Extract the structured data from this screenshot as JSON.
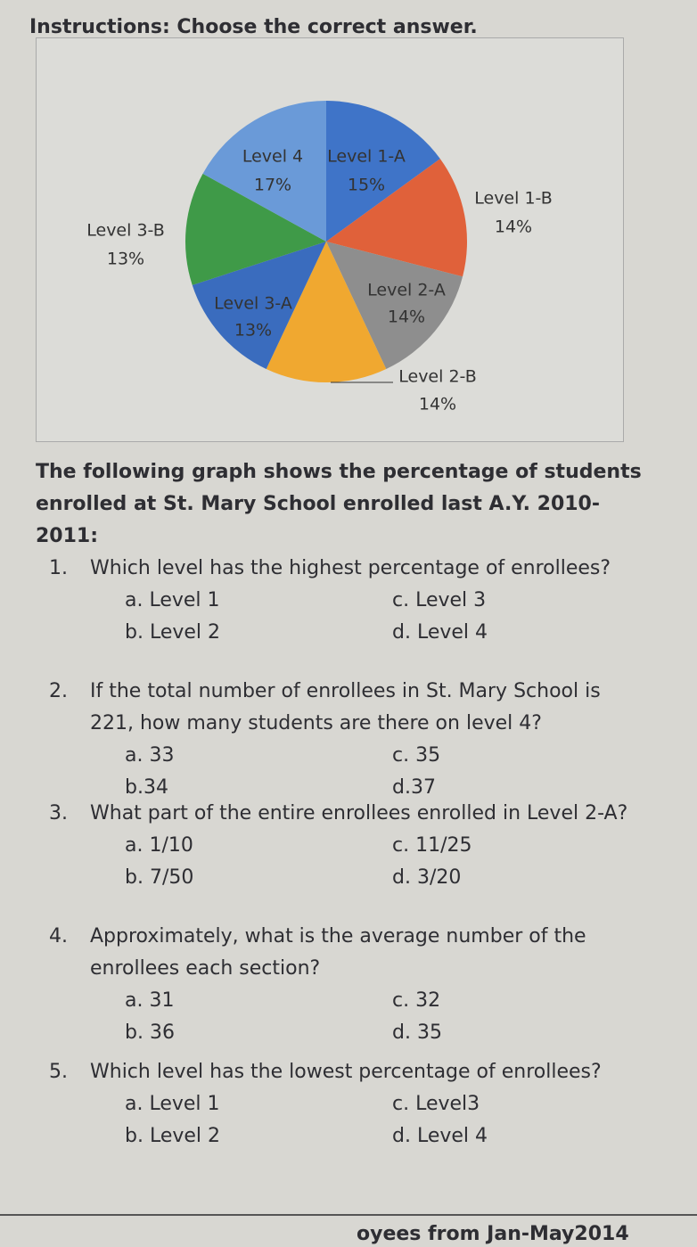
{
  "instructions": "Instructions: Choose the correct answer.",
  "chart_data": {
    "type": "pie",
    "categories": [
      "Level 1-A",
      "Level 1-B",
      "Level 2-A",
      "Level 2-B",
      "Level 3-A",
      "Level 3-B",
      "Level 4"
    ],
    "values": [
      15,
      14,
      14,
      14,
      13,
      13,
      17
    ],
    "value_labels": [
      "15%",
      "14%",
      "14%",
      "14%",
      "13%",
      "13%",
      "17%"
    ],
    "colors": [
      "#3f74c8",
      "#e0613a",
      "#8e8e8e",
      "#f0a830",
      "#3a6cbe",
      "#3f9a48",
      "#6a9ad8"
    ]
  },
  "description": "The following graph shows the percentage of students enrolled at St. Mary School enrolled last A.Y. 2010-2011:",
  "questions": [
    {
      "number": "1.",
      "text": "Which level has the highest percentage of enrollees?",
      "options": [
        "a. Level 1",
        "c. Level 3",
        "b. Level 2",
        "d. Level 4"
      ]
    },
    {
      "number": "2.",
      "text": "If the total number of enrollees in St. Mary School is 221, how many students are there on level 4?",
      "options": [
        "a. 33",
        "c. 35",
        "b.34",
        "d.37"
      ]
    },
    {
      "number": "3.",
      "text": "What part of the entire enrollees enrolled in Level 2-A?",
      "options": [
        "a. 1/10",
        "c. 11/25",
        "b. 7/50",
        "d. 3/20"
      ]
    },
    {
      "number": "4.",
      "text": "Approximately, what is the average number of the enrollees each section?",
      "options": [
        "a. 31",
        "c. 32",
        "b. 36",
        "d. 35"
      ]
    },
    {
      "number": "5.",
      "text": "Which level has the lowest percentage of enrollees?",
      "options": [
        "a. Level 1",
        "c. Level3",
        "b. Level 2",
        "d. Level 4"
      ]
    }
  ],
  "footer": "oyees from Jan-May2014"
}
